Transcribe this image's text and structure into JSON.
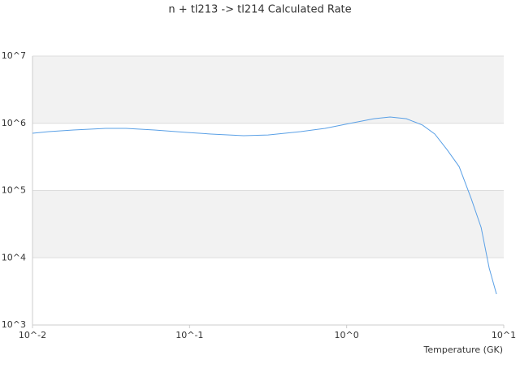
{
  "chart_data": {
    "type": "line",
    "title": "n + tl213 -> tl214 Calculated Rate",
    "xlabel": "Temperature (GK)",
    "x": [
      0.01,
      0.0127,
      0.0182,
      0.0292,
      0.0394,
      0.0597,
      0.0962,
      0.137,
      0.221,
      0.316,
      0.509,
      0.728,
      1.04,
      1.49,
      1.89,
      2.4,
      3.04,
      3.64,
      4.35,
      5.2,
      6.22,
      7.18,
      8.08,
      8.99
    ],
    "values": [
      711000,
      752000,
      795000,
      840000,
      840000,
      795000,
      731000,
      692000,
      654000,
      670000,
      752000,
      840000,
      993000,
      1170000,
      1240000,
      1170000,
      940000,
      692000,
      407000,
      227000,
      74700,
      28200,
      7010,
      2880
    ],
    "color": "#5aa0e6",
    "xscale": "log",
    "yscale": "log",
    "xlim": [
      0.01,
      10
    ],
    "ylim": [
      1000,
      10000000
    ],
    "xticks": [
      {
        "value": 0.01,
        "label": "10^-2"
      },
      {
        "value": 0.1,
        "label": "10^-1"
      },
      {
        "value": 1,
        "label": "10^0"
      },
      {
        "value": 10,
        "label": "10^1"
      }
    ],
    "yticks": [
      {
        "value": 1000,
        "label": "10^3"
      },
      {
        "value": 10000,
        "label": "10^4"
      },
      {
        "value": 100000,
        "label": "10^5"
      },
      {
        "value": 1000000,
        "label": "10^6"
      },
      {
        "value": 10000000,
        "label": "10^7"
      }
    ],
    "grid": true,
    "band_color": "#f2f2f2"
  }
}
